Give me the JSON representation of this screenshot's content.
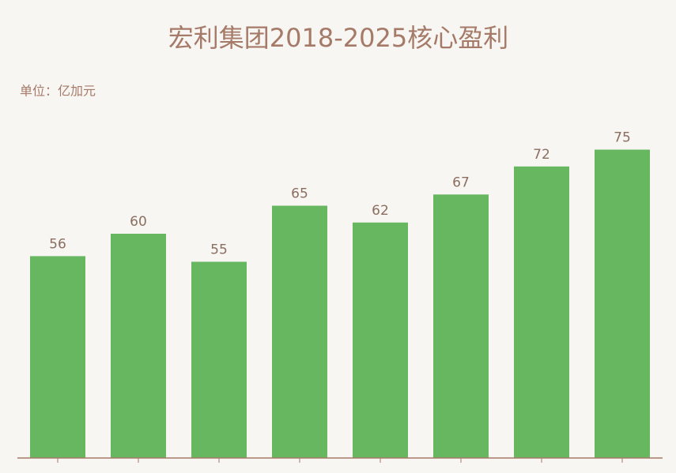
{
  "chart_data": {
    "type": "bar",
    "title": "宏利集团2018-2025核心盈利",
    "subtitle": "单位：亿加元",
    "categories": [
      null,
      null,
      null,
      null,
      null,
      null,
      null,
      null
    ],
    "values": [
      56,
      60,
      55,
      65,
      62,
      67,
      72,
      75
    ],
    "color": "#66b75f",
    "ylim": [
      20,
      80
    ]
  }
}
